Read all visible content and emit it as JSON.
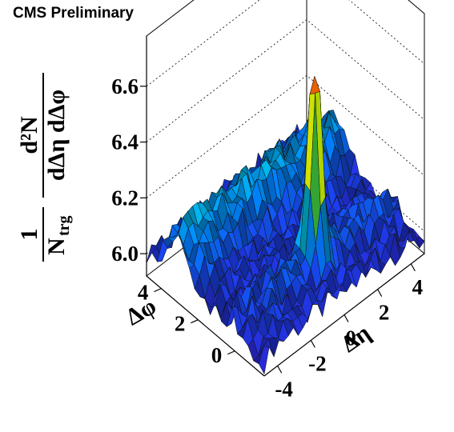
{
  "header": {
    "title": "CMS Preliminary"
  },
  "chart_data": {
    "type": "surface3d",
    "title": "",
    "x_axis": {
      "label": "Δη",
      "range": [
        -4.8,
        4.8
      ],
      "ticks": [
        "-4",
        "-2",
        "0",
        "2",
        "4"
      ],
      "tick_values": [
        -4,
        -2,
        0,
        2,
        4
      ]
    },
    "y_axis": {
      "label": "Δφ",
      "range": [
        -1.6,
        4.8
      ],
      "ticks": [
        "0",
        "2",
        "4"
      ],
      "tick_values": [
        0,
        2,
        4
      ]
    },
    "z_axis": {
      "label_numerator": "1",
      "label_denominator_main": "N",
      "label_denominator_sub": "trg",
      "label_fraction_top": "d²N",
      "label_fraction_bottom": "dΔη dΔφ",
      "range": [
        5.92,
        6.78
      ],
      "ticks": [
        "6.0",
        "6.2",
        "6.4",
        "6.6"
      ],
      "tick_values": [
        6.0,
        6.2,
        6.4,
        6.6
      ]
    },
    "grid": true,
    "colormap": "rainbow",
    "features": {
      "baseline": 6.0,
      "near_side_peak": {
        "eta": 0,
        "phi": 0,
        "value": 6.73
      },
      "away_side_ridge": {
        "phi": 3.14,
        "value": 6.16
      },
      "near_side_ridge": {
        "phi": 0,
        "value": 6.06
      }
    }
  }
}
